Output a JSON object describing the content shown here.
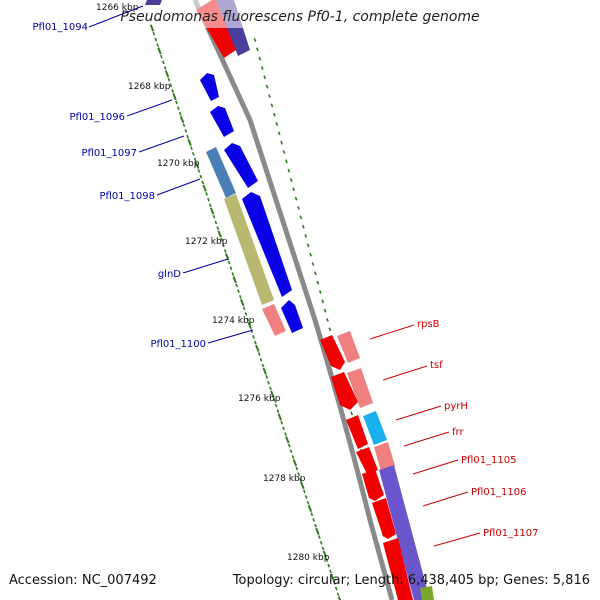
{
  "title": "Pseudomonas fluorescens Pf0-1, complete genome",
  "footer": {
    "accession_label": "Accession:",
    "accession": "NC_007492",
    "topology_label": "Topology:",
    "topology": "circular",
    "length_label": "Length:",
    "length": "6,438,405 bp",
    "genes_label": "Genes:",
    "genes": "5,816"
  },
  "colors": {
    "backbone": "#8a8a8a",
    "forward_cds": "#0a00e6",
    "forward_cds_alt": "#4a7fb5",
    "forward_misc": "#b8b870",
    "reverse_cds": "#f00000",
    "reverse_cds_light": "#f08080",
    "reverse_misc": "#6a55cc",
    "reverse_cyan": "#1ab0f0",
    "ruler": "#2e7d1e",
    "label_forward": "#0000aa",
    "label_reverse": "#cc0000"
  },
  "ruler_labels": [
    "1266 kbp",
    "1268 kbp",
    "1270 kbp",
    "1272 kbp",
    "1274 kbp",
    "1276 kbp",
    "1278 kbp",
    "1280 kbp"
  ],
  "forward_genes": [
    "Pfl01_1094",
    "Pfl01_1096",
    "Pfl01_1097",
    "Pfl01_1098",
    "glnD",
    "Pfl01_1100"
  ],
  "reverse_genes": [
    "rpsB",
    "tsf",
    "pyrH",
    "frr",
    "Pfl01_1105",
    "Pfl01_1106",
    "Pfl01_1107"
  ]
}
